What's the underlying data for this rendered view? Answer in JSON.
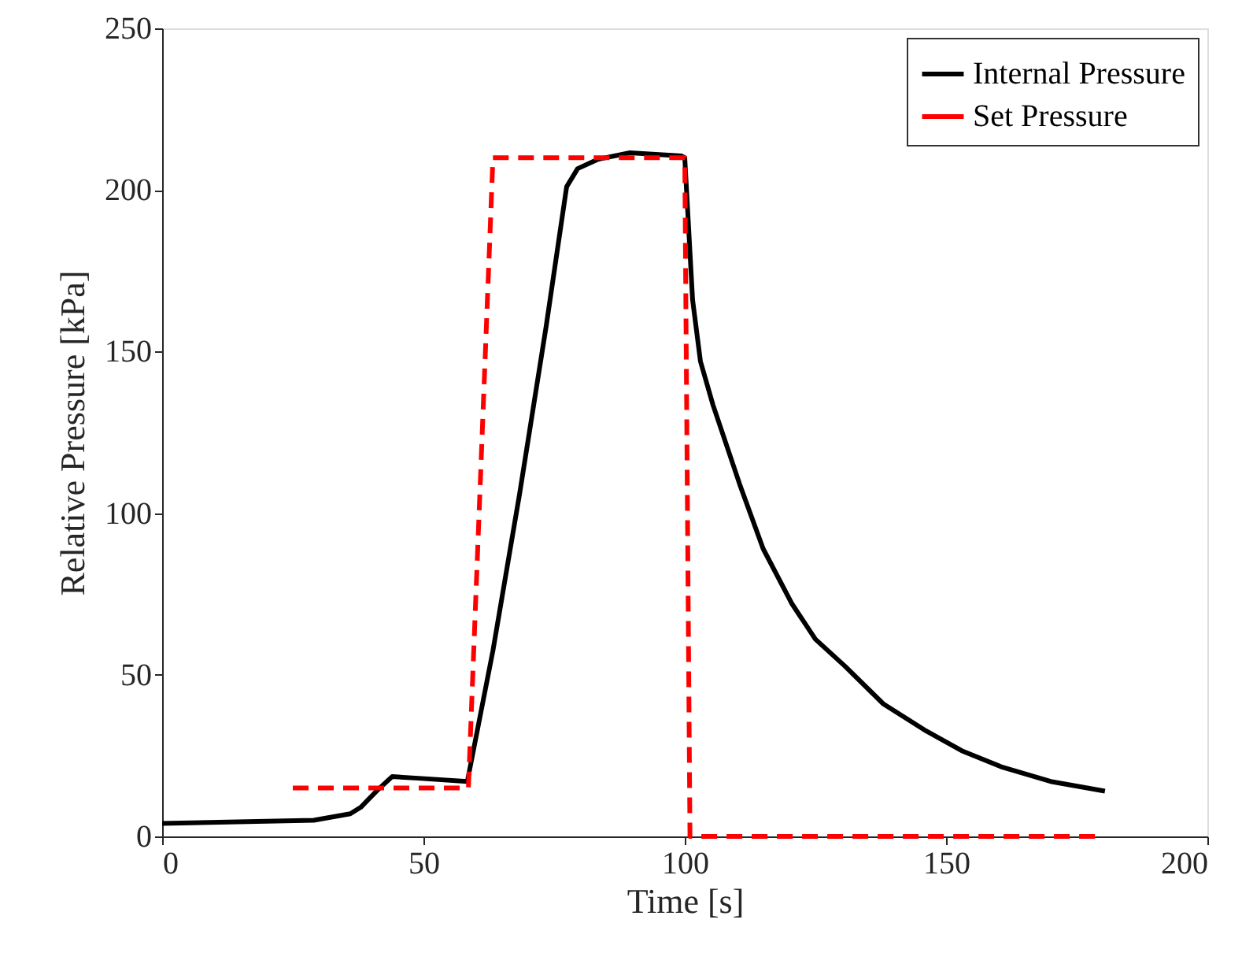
{
  "chart_data": {
    "type": "line",
    "xlabel": "Time [s]",
    "ylabel": "Relative Pressure [kPa]",
    "xlim": [
      0,
      200
    ],
    "xticks": [
      0,
      50,
      100,
      150,
      200
    ],
    "ylim": [
      0,
      250
    ],
    "yticks": [
      0,
      50,
      100,
      150,
      200,
      250
    ],
    "grid": false,
    "legend": "top right",
    "marker": "none",
    "series": [
      {
        "name": "Internal Pressure",
        "color": "#000000",
        "line_style": "solid",
        "x": [
          0,
          29,
          36,
          38,
          41,
          44,
          49,
          58.4,
          63.3,
          68.4,
          73.5,
          77.4,
          79.5,
          83.4,
          89.5,
          99.4,
          100,
          101.5,
          103,
          105.4,
          110.5,
          115,
          120.5,
          125,
          130.7,
          138,
          145.8,
          153,
          160.8,
          170,
          180.4
        ],
        "values": [
          4,
          5,
          7,
          9,
          14,
          18.5,
          18,
          17,
          57.5,
          106,
          158,
          201,
          206.6,
          209.5,
          211.5,
          210.5,
          210,
          166,
          147,
          133.5,
          109,
          89,
          72,
          61,
          52.6,
          41,
          33,
          26.5,
          21.4,
          17,
          14
        ]
      },
      {
        "name": "Set Pressure",
        "color": "#ff0000",
        "line_style": "dashed",
        "x": [
          25,
          58.6,
          63.3,
          100,
          101,
          179
        ],
        "values": [
          15,
          15,
          210,
          210,
          0,
          0
        ]
      }
    ]
  }
}
